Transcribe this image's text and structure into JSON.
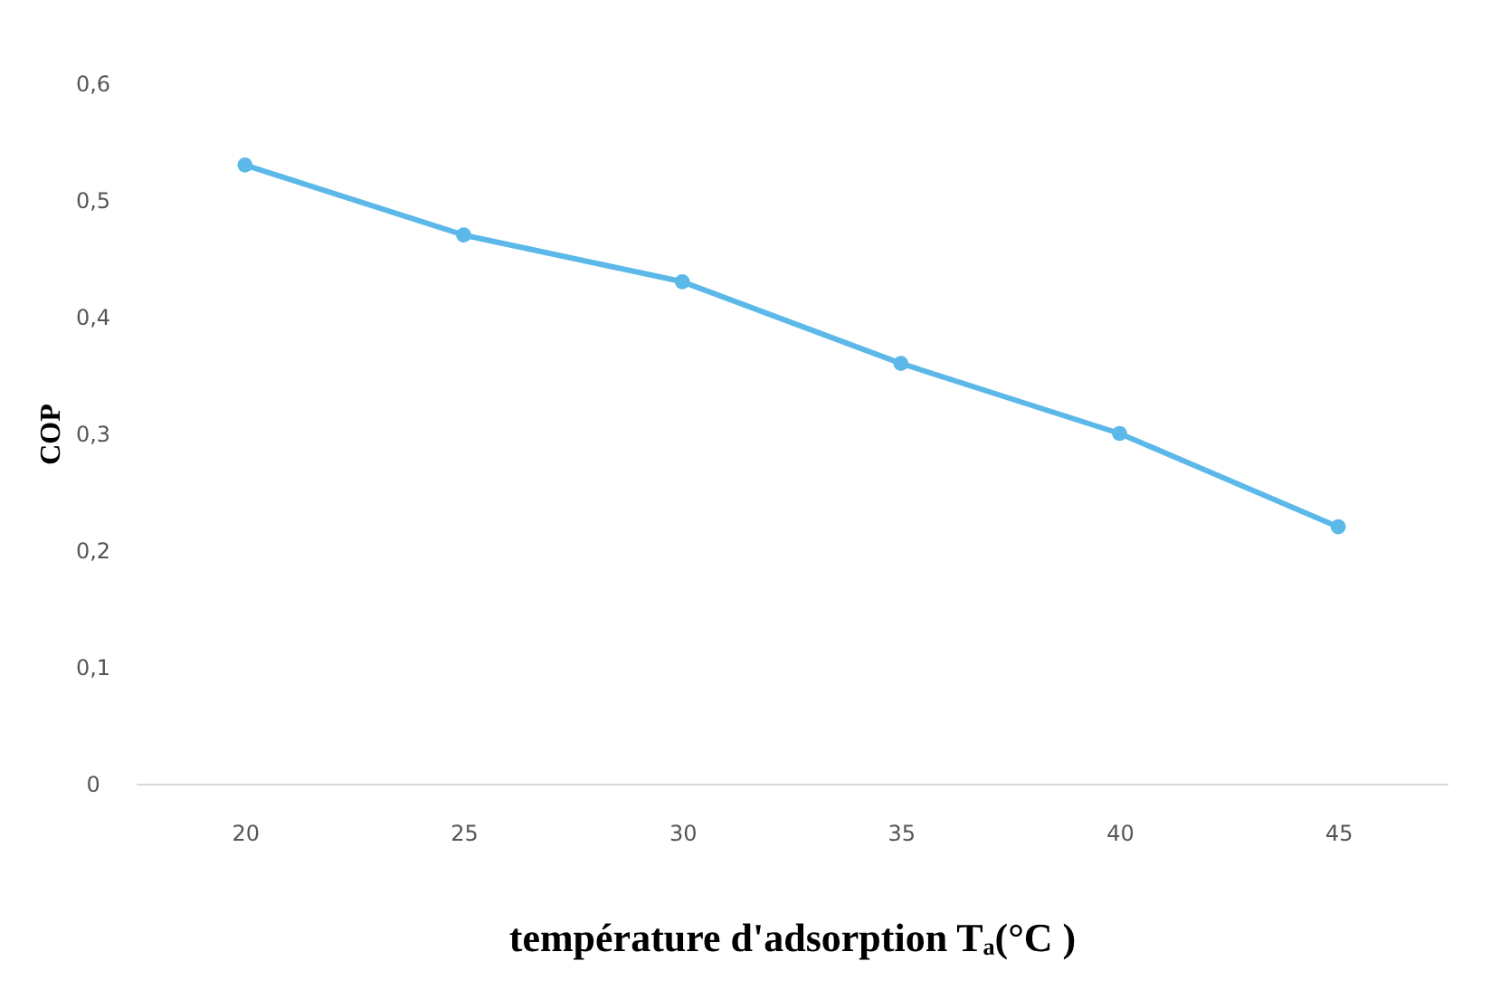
{
  "chart_data": {
    "type": "line",
    "xlabel": "température d'adsorption Tₐ(°C )",
    "ylabel": "COP",
    "x": [
      20,
      25,
      30,
      35,
      40,
      45
    ],
    "series": [
      {
        "color": "#5bb8e8",
        "values": [
          0.53,
          0.47,
          0.43,
          0.36,
          0.3,
          0.22
        ]
      }
    ],
    "xlim": [
      17.5,
      47.5
    ],
    "xticks": [
      20,
      25,
      30,
      35,
      40,
      45
    ],
    "ylim": [
      0,
      0.6
    ],
    "yticks": [
      {
        "value": 0,
        "label": "0"
      },
      {
        "value": 0.1,
        "label": "0,1"
      },
      {
        "value": 0.2,
        "label": "0,2"
      },
      {
        "value": 0.3,
        "label": "0,3"
      },
      {
        "value": 0.4,
        "label": "0,4"
      },
      {
        "value": 0.5,
        "label": "0,5"
      },
      {
        "value": 0.6,
        "label": "0,6"
      }
    ],
    "marker": "circle",
    "line_style": "solid",
    "grid": false,
    "legend": false
  }
}
